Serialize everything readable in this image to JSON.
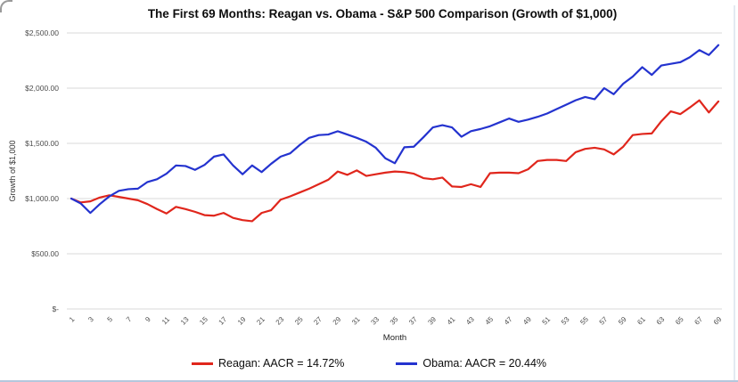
{
  "chart_data": {
    "type": "line",
    "title": "The First 69 Months: Reagan vs. Obama - S&P 500 Comparison (Growth of $1,000)",
    "xlabel": "Month",
    "ylabel": "Growth of $1,000",
    "ylim": [
      0,
      2500
    ],
    "grid": "horizontal",
    "legend_position": "bottom",
    "gridline_color": "#d8d8d8",
    "y_ticks": [
      {
        "value": 2500,
        "label": "$2,500.00"
      },
      {
        "value": 2000,
        "label": "$2,000.00"
      },
      {
        "value": 1500,
        "label": "$1,500.00"
      },
      {
        "value": 1000,
        "label": "$1,000.00"
      },
      {
        "value": 500,
        "label": "$500.00"
      },
      {
        "value": 0,
        "label": "$-"
      }
    ],
    "x_ticks": [
      1,
      3,
      5,
      7,
      9,
      11,
      13,
      15,
      17,
      19,
      21,
      23,
      25,
      27,
      29,
      31,
      33,
      35,
      37,
      39,
      41,
      43,
      45,
      47,
      49,
      51,
      53,
      55,
      57,
      59,
      61,
      63,
      65,
      67,
      69
    ],
    "x": [
      1,
      2,
      3,
      4,
      5,
      6,
      7,
      8,
      9,
      10,
      11,
      12,
      13,
      14,
      15,
      16,
      17,
      18,
      19,
      20,
      21,
      22,
      23,
      24,
      25,
      26,
      27,
      28,
      29,
      30,
      31,
      32,
      33,
      34,
      35,
      36,
      37,
      38,
      39,
      40,
      41,
      42,
      43,
      44,
      45,
      46,
      47,
      48,
      49,
      50,
      51,
      52,
      53,
      54,
      55,
      56,
      57,
      58,
      59,
      60,
      61,
      62,
      63,
      64,
      65,
      66,
      67,
      68,
      69
    ],
    "series": [
      {
        "name": "Reagan: AACR = 14.72%",
        "color": "#e0261c",
        "values": [
          1000,
          965,
          975,
          1010,
          1030,
          1015,
          1000,
          985,
          950,
          905,
          865,
          925,
          905,
          880,
          850,
          845,
          870,
          825,
          805,
          795,
          870,
          895,
          990,
          1020,
          1055,
          1090,
          1130,
          1170,
          1245,
          1215,
          1255,
          1205,
          1220,
          1235,
          1245,
          1240,
          1225,
          1185,
          1175,
          1190,
          1110,
          1105,
          1130,
          1105,
          1230,
          1235,
          1235,
          1230,
          1265,
          1340,
          1350,
          1350,
          1340,
          1420,
          1450,
          1460,
          1445,
          1400,
          1470,
          1575,
          1585,
          1590,
          1700,
          1790,
          1765,
          1825,
          1890,
          1780,
          1880
        ]
      },
      {
        "name": "Obama: AACR = 20.44%",
        "color": "#2433cf",
        "values": [
          1000,
          955,
          870,
          950,
          1020,
          1070,
          1085,
          1090,
          1150,
          1175,
          1225,
          1300,
          1295,
          1260,
          1305,
          1380,
          1400,
          1300,
          1220,
          1300,
          1240,
          1315,
          1380,
          1410,
          1485,
          1550,
          1575,
          1580,
          1610,
          1580,
          1550,
          1515,
          1460,
          1365,
          1320,
          1465,
          1470,
          1555,
          1645,
          1665,
          1645,
          1560,
          1610,
          1630,
          1655,
          1690,
          1725,
          1695,
          1715,
          1740,
          1770,
          1810,
          1850,
          1890,
          1920,
          1900,
          2000,
          1945,
          2040,
          2105,
          2190,
          2120,
          2205,
          2220,
          2235,
          2280,
          2345,
          2300,
          2390
        ]
      }
    ]
  }
}
